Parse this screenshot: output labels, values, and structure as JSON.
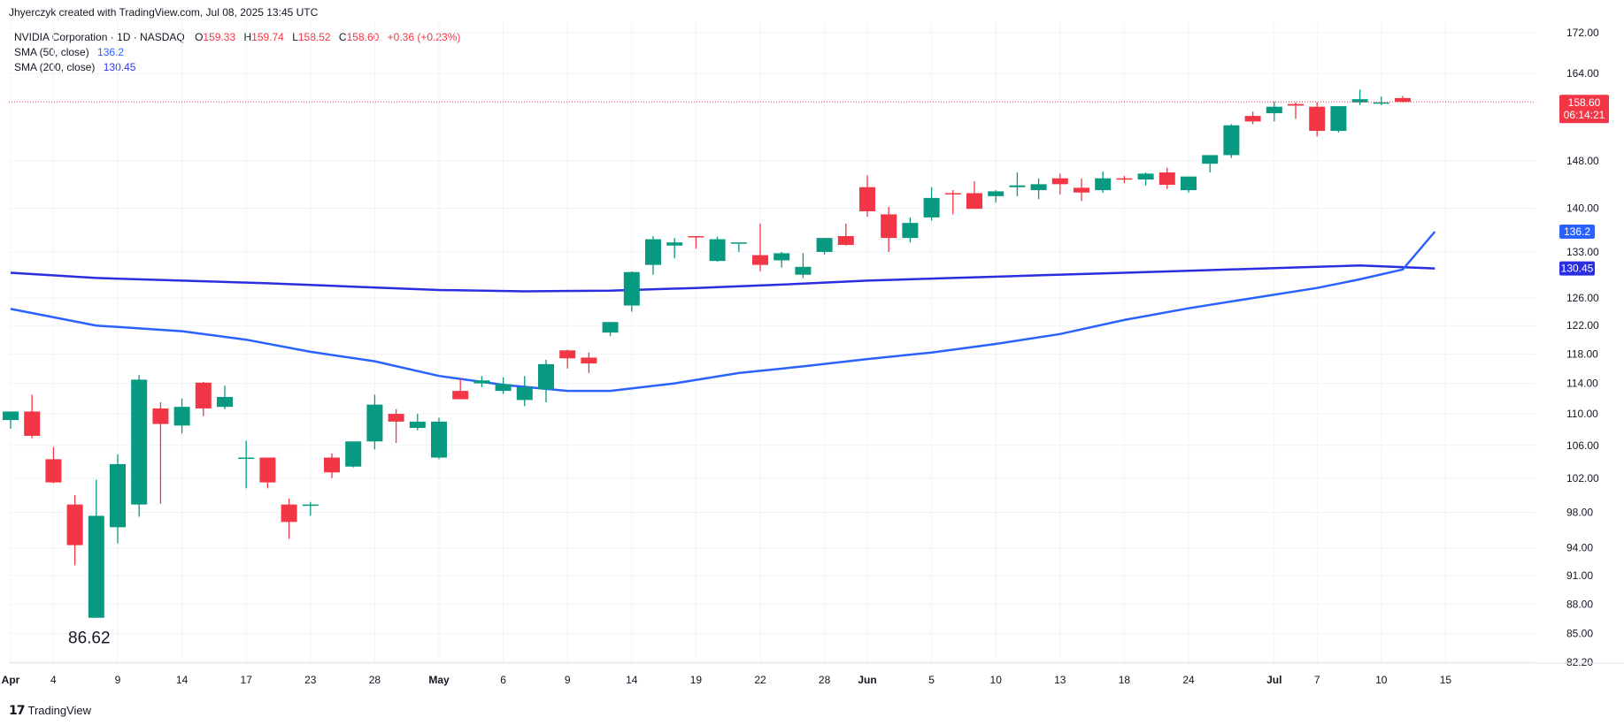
{
  "header": {
    "credit": "Jhyerczyk created with TradingView.com, Jul 08, 2025 13:45 UTC"
  },
  "legend": {
    "symbol": "NVIDIA Corporation · 1D · NASDAQ",
    "o_label": "O",
    "o_value": "159.33",
    "h_label": "H",
    "h_value": "159.74",
    "l_label": "L",
    "l_value": "158.52",
    "c_label": "C",
    "c_value": "158.60",
    "change": "+0.36 (+0.23%)",
    "sma50_label": "SMA (50, close)",
    "sma50_value": "136.2",
    "sma200_label": "SMA (200, close)",
    "sma200_value": "130.45"
  },
  "footer": {
    "brand": "TradingView"
  },
  "chart_data": {
    "type": "candlestick",
    "colors": {
      "up": "#089981",
      "down": "#f23645",
      "sma50": "#2962ff",
      "sma200": "#2a2ee0",
      "last_price": "#f23645"
    },
    "y_ticks": [
      172.0,
      164.0,
      148.0,
      140.0,
      133.0,
      126.0,
      122.0,
      118.0,
      114.0,
      110.0,
      106.0,
      102.0,
      98.0,
      94.0,
      91.0,
      88.0,
      85.0,
      82.2
    ],
    "y_tick_labels": [
      "172.00",
      "164.00",
      "148.00",
      "140.00",
      "133.00",
      "126.00",
      "122.00",
      "118.00",
      "114.00",
      "110.00",
      "106.00",
      "102.00",
      "98.00",
      "94.00",
      "91.00",
      "88.00",
      "85.00",
      "82.20"
    ],
    "y_scale": "log",
    "x_labels": [
      {
        "i": 0,
        "text": "Apr",
        "bold": true
      },
      {
        "i": 2,
        "text": "4"
      },
      {
        "i": 5,
        "text": "9"
      },
      {
        "i": 8,
        "text": "14"
      },
      {
        "i": 11,
        "text": "17"
      },
      {
        "i": 14,
        "text": "23"
      },
      {
        "i": 17,
        "text": "28"
      },
      {
        "i": 20,
        "text": "May",
        "bold": true
      },
      {
        "i": 23,
        "text": "6"
      },
      {
        "i": 26,
        "text": "9"
      },
      {
        "i": 29,
        "text": "14"
      },
      {
        "i": 32,
        "text": "19"
      },
      {
        "i": 35,
        "text": "22"
      },
      {
        "i": 38,
        "text": "28"
      },
      {
        "i": 40,
        "text": "Jun",
        "bold": true
      },
      {
        "i": 43,
        "text": "5"
      },
      {
        "i": 46,
        "text": "10"
      },
      {
        "i": 49,
        "text": "13"
      },
      {
        "i": 52,
        "text": "18"
      },
      {
        "i": 55,
        "text": "24"
      },
      {
        "i": 59,
        "text": "Jul",
        "bold": true
      },
      {
        "i": 61,
        "text": "7"
      },
      {
        "i": 64,
        "text": "10"
      },
      {
        "i": 67,
        "text": "15"
      }
    ],
    "candles": [
      [
        109.2,
        110.3,
        108.1,
        110.3
      ],
      [
        110.3,
        112.5,
        106.9,
        107.2
      ],
      [
        104.3,
        105.8,
        101.4,
        101.5
      ],
      [
        98.9,
        100.0,
        92.1,
        94.3
      ],
      [
        86.6,
        101.8,
        86.6,
        97.6
      ],
      [
        96.3,
        104.9,
        94.5,
        103.7
      ],
      [
        98.9,
        115.1,
        97.5,
        114.5
      ],
      [
        110.7,
        111.5,
        99.0,
        108.7
      ],
      [
        108.5,
        112.0,
        107.5,
        110.9
      ],
      [
        114.1,
        114.2,
        109.7,
        110.7
      ],
      [
        110.9,
        113.7,
        110.6,
        112.2
      ],
      [
        104.5,
        106.6,
        100.8,
        104.5
      ],
      [
        104.5,
        104.5,
        100.8,
        101.5
      ],
      [
        98.9,
        99.6,
        95.0,
        96.9
      ],
      [
        98.9,
        99.2,
        97.6,
        98.9
      ],
      [
        104.5,
        105.0,
        102.0,
        102.7
      ],
      [
        103.4,
        106.3,
        103.3,
        106.5
      ],
      [
        106.5,
        112.5,
        105.5,
        111.2
      ],
      [
        110.0,
        110.6,
        106.3,
        109.0
      ],
      [
        108.2,
        110.0,
        107.9,
        109.0
      ],
      [
        104.5,
        109.5,
        104.3,
        109.0
      ],
      [
        113.0,
        114.6,
        112.0,
        111.9
      ],
      [
        114.0,
        115.0,
        113.5,
        114.4
      ],
      [
        113.0,
        114.8,
        112.6,
        113.9
      ],
      [
        111.8,
        115.0,
        111.0,
        113.5
      ],
      [
        113.2,
        117.2,
        111.5,
        116.6
      ],
      [
        118.5,
        118.6,
        116.0,
        117.4
      ],
      [
        117.5,
        118.2,
        115.4,
        116.7
      ],
      [
        121.0,
        122.5,
        120.5,
        122.5
      ],
      [
        124.9,
        130.0,
        124.0,
        129.9
      ],
      [
        131.0,
        135.5,
        129.5,
        135.0
      ],
      [
        134.0,
        135.2,
        132.0,
        134.5
      ],
      [
        135.5,
        135.5,
        133.5,
        135.3
      ],
      [
        131.6,
        135.4,
        131.5,
        135.0
      ],
      [
        134.4,
        134.3,
        133.0,
        134.5
      ],
      [
        132.5,
        137.5,
        130.0,
        131.0
      ],
      [
        131.7,
        133.0,
        130.6,
        132.8
      ],
      [
        129.5,
        132.8,
        129.0,
        130.7
      ],
      [
        133.0,
        134.8,
        132.6,
        135.2
      ],
      [
        135.5,
        137.5,
        134.0,
        134.1
      ],
      [
        143.5,
        145.5,
        138.6,
        139.5
      ],
      [
        139.0,
        140.2,
        133.0,
        135.2
      ],
      [
        135.2,
        138.5,
        134.5,
        137.6
      ],
      [
        138.5,
        143.5,
        138.0,
        141.7
      ],
      [
        142.5,
        143.0,
        139.0,
        142.3
      ],
      [
        142.5,
        144.5,
        140.0,
        139.9
      ],
      [
        142.0,
        143.0,
        140.9,
        142.8
      ],
      [
        143.5,
        146.0,
        142.0,
        143.8
      ],
      [
        143.0,
        145.0,
        141.5,
        144.0
      ],
      [
        145.0,
        145.8,
        142.3,
        144.0
      ],
      [
        143.4,
        145.0,
        141.2,
        142.6
      ],
      [
        143.0,
        146.2,
        142.6,
        145.0
      ],
      [
        145.0,
        145.4,
        144.2,
        144.9
      ],
      [
        144.8,
        146.0,
        143.8,
        145.8
      ],
      [
        146.0,
        146.8,
        143.2,
        143.9
      ],
      [
        143.0,
        145.0,
        142.6,
        145.3
      ],
      [
        147.5,
        148.7,
        146.0,
        149.0
      ],
      [
        149.0,
        154.5,
        148.5,
        154.3
      ],
      [
        156.0,
        156.8,
        154.5,
        155.0
      ],
      [
        156.5,
        158.7,
        155.0,
        157.7
      ],
      [
        158.2,
        158.5,
        155.5,
        157.9
      ],
      [
        157.7,
        158.5,
        152.3,
        153.3
      ],
      [
        153.3,
        157.3,
        153.0,
        157.8
      ],
      [
        158.5,
        160.9,
        158.0,
        159.1
      ],
      [
        158.5,
        159.6,
        158.0,
        158.5
      ],
      [
        159.3,
        159.7,
        158.5,
        158.6
      ]
    ],
    "sma50": [
      [
        0,
        124.4
      ],
      [
        4,
        122.0
      ],
      [
        8,
        121.2
      ],
      [
        11,
        120.0
      ],
      [
        14,
        118.3
      ],
      [
        17,
        117.0
      ],
      [
        20,
        115.0
      ],
      [
        23,
        113.8
      ],
      [
        26,
        113.0
      ],
      [
        28,
        113.0
      ],
      [
        31,
        114.0
      ],
      [
        34,
        115.4
      ],
      [
        37,
        116.3
      ],
      [
        40,
        117.3
      ],
      [
        43,
        118.2
      ],
      [
        46,
        119.4
      ],
      [
        49,
        120.8
      ],
      [
        52,
        122.8
      ],
      [
        55,
        124.5
      ],
      [
        58,
        126.0
      ],
      [
        61,
        127.5
      ],
      [
        63,
        128.8
      ],
      [
        65,
        130.3
      ],
      [
        66.5,
        136.2
      ]
    ],
    "sma200": [
      [
        0,
        129.8
      ],
      [
        4,
        129.0
      ],
      [
        8,
        128.6
      ],
      [
        12,
        128.2
      ],
      [
        16,
        127.7
      ],
      [
        20,
        127.2
      ],
      [
        24,
        127.0
      ],
      [
        28,
        127.1
      ],
      [
        32,
        127.5
      ],
      [
        36,
        128.0
      ],
      [
        40,
        128.6
      ],
      [
        44,
        129.0
      ],
      [
        48,
        129.4
      ],
      [
        52,
        129.8
      ],
      [
        56,
        130.2
      ],
      [
        60,
        130.6
      ],
      [
        63,
        130.9
      ],
      [
        66.5,
        130.45
      ]
    ],
    "low_annotation": "86.62",
    "last_price_label": "158.60",
    "last_price_timer": "06:14:21",
    "sma50_tag": "136.2",
    "sma200_tag": "130.45"
  }
}
